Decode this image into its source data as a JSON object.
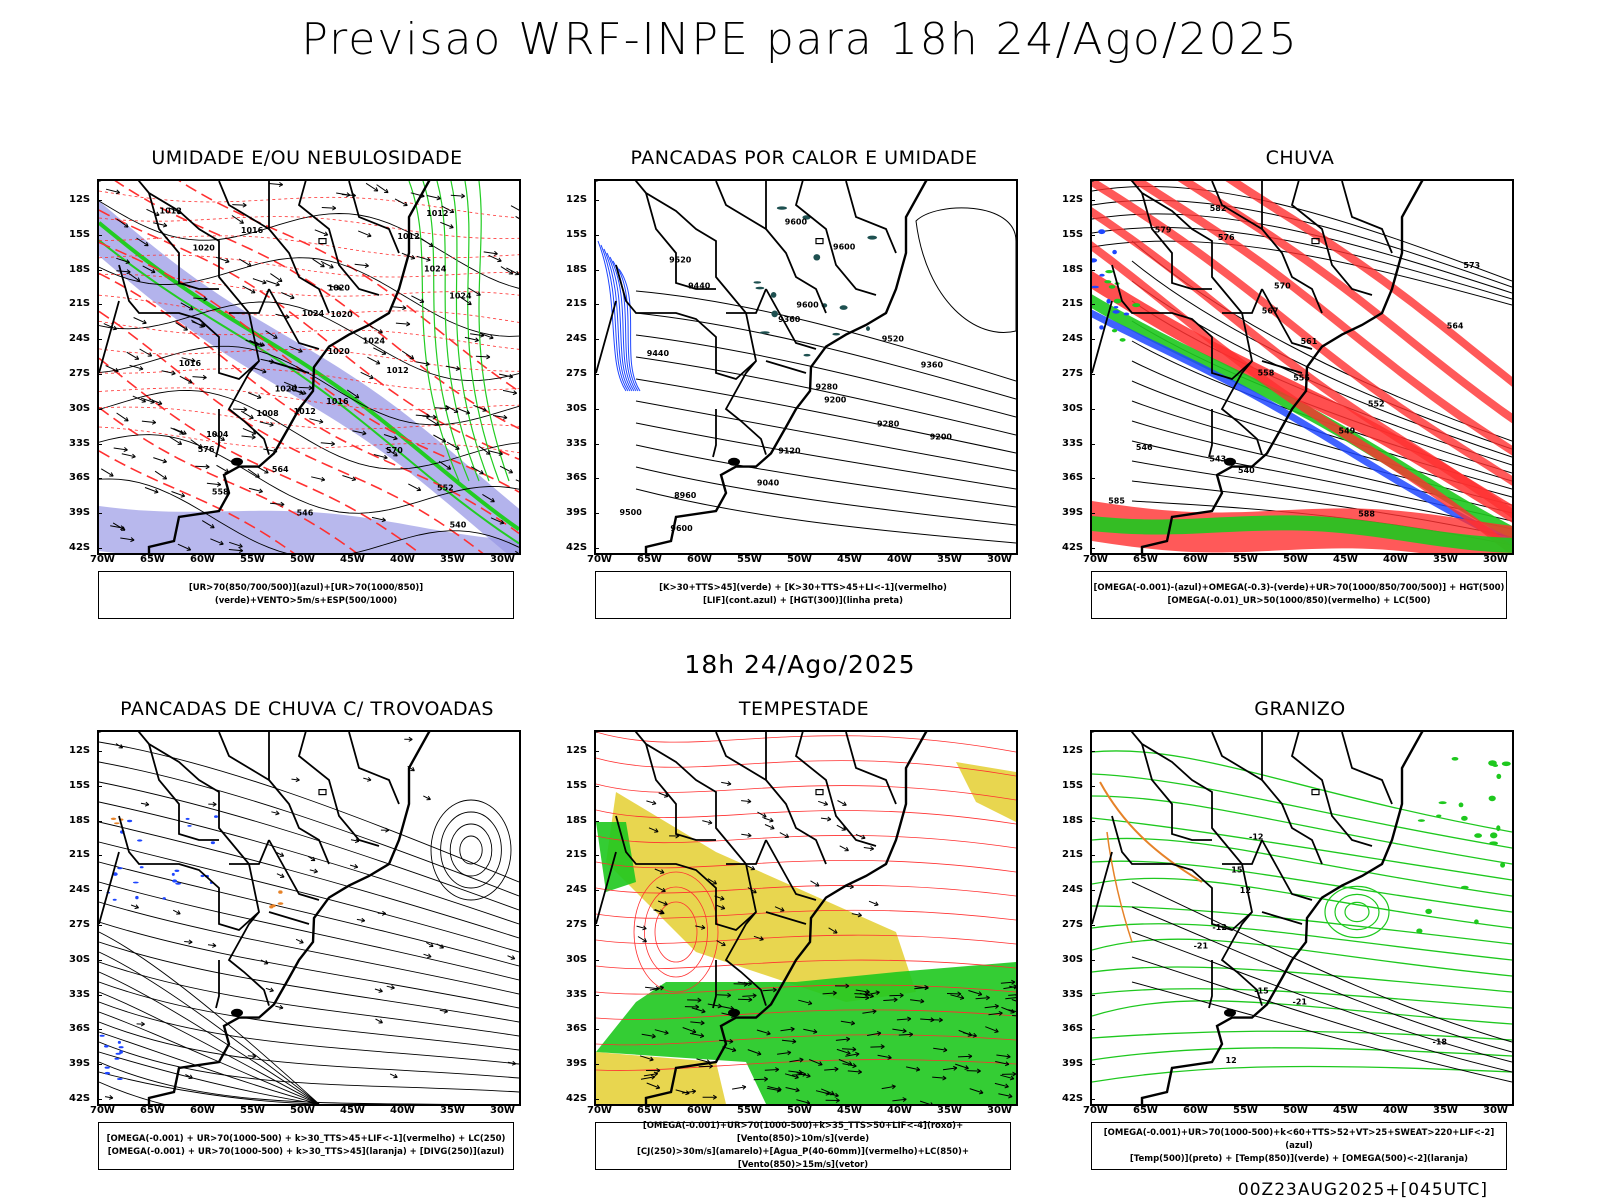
{
  "main_title": "Previsao WRF-INPE  para 18h 24/Ago/2025",
  "mid_title": "18h 24/Ago/2025",
  "footer": "00Z23AUG2025+[045UTC]",
  "lat_ticks": [
    "12S",
    "15S",
    "18S",
    "21S",
    "24S",
    "27S",
    "30S",
    "33S",
    "36S",
    "39S",
    "42S"
  ],
  "lon_ticks": [
    "70W",
    "65W",
    "60W",
    "55W",
    "50W",
    "45W",
    "40W",
    "35W",
    "30W"
  ],
  "colors": {
    "humidity_mid": "#9a9ae6",
    "humidity_low": "#22cc22",
    "precip_red": "#ff3030",
    "precip_blue": "#1e46ff",
    "storm_yellow": "#e6d23c",
    "storm_green": "#1ec81e",
    "shower_teal": "#1e5050",
    "hail_orange": "#e68228"
  },
  "panels": [
    {
      "title": "UMIDADE E/OU NEBULOSIDADE",
      "legend": [
        "[UR>70(850/700/500)](azul)+[UR>70(1000/850)](verde)+VENTO>5m/s+ESP(500/1000)"
      ],
      "contour_labels": [
        "1012",
        "1012",
        "1016",
        "1012",
        "1020",
        "1024",
        "1020",
        "1024",
        "1024",
        "1020",
        "1024",
        "1020",
        "1016",
        "1012",
        "1020",
        "1016",
        "1012",
        "1008",
        "1004",
        "576",
        "570",
        "564",
        "558",
        "552",
        "546",
        "540"
      ]
    },
    {
      "title": "PANCADAS POR CALOR E UMIDADE",
      "legend": [
        "[K>30+TTS>45](verde) + [K>30+TTS>45+LI<-1](vermelho)",
        "[LIF](cont.azul) + [HGT(300)](linha preta)"
      ],
      "contour_labels": [
        "9600",
        "9600",
        "9520",
        "9440",
        "9600",
        "9360",
        "9520",
        "9440",
        "9360",
        "9280",
        "9200",
        "9280",
        "9200",
        "9120",
        "9040",
        "8960",
        "9500",
        "9600"
      ]
    },
    {
      "title": "CHUVA",
      "legend": [
        "[OMEGA(-0.001)-(azul)+OMEGA(-0.3)-(verde)+UR>70(1000/850/700/500)] + HGT(500)",
        "[OMEGA(-0.01)_UR>50(1000/850)(vermelho) + LC(500)"
      ],
      "contour_labels": [
        "582",
        "579",
        "576",
        "573",
        "570",
        "567",
        "564",
        "561",
        "558",
        "555",
        "552",
        "549",
        "546",
        "543",
        "540",
        "585",
        "588"
      ]
    },
    {
      "title": "PANCADAS DE CHUVA C/ TROVOADAS",
      "legend": [
        "[OMEGA(-0.001) + UR>70(1000-500) + k>30_TTS>45+LIF<-1](vermelho) + LC(250)",
        "[OMEGA(-0.001) + UR>70(1000-500) + k>30_TTS>45](laranja) + [DIVG(250)](azul)"
      ],
      "contour_labels": []
    },
    {
      "title": "TEMPESTADE",
      "legend": [
        "[OMEGA(-0.001)+UR>70(1000-500)+k>35_TTS>50+LIF<-4](roxo)+[Vento(850)>10m/s](verde)",
        "[CJ(250)>30m/s](amarelo)+[Agua_P(40-60mm)](vermelho)+LC(850)+[Vento(850)>15m/s](vetor)"
      ],
      "contour_labels": []
    },
    {
      "title": "GRANIZO",
      "legend": [
        "[OMEGA(-0.001)+UR>70(1000-500)+k<60+TTS>52+VT>25+SWEAT>220+LIF<-2](azul)",
        "[Temp(500)](preto) + [Temp(850)](verde) + [OMEGA(500)<-2](laranja)"
      ],
      "contour_labels": [
        "-12",
        "15",
        "12",
        "-12",
        "-21",
        "-15",
        "-21",
        "-18",
        "12"
      ]
    }
  ]
}
